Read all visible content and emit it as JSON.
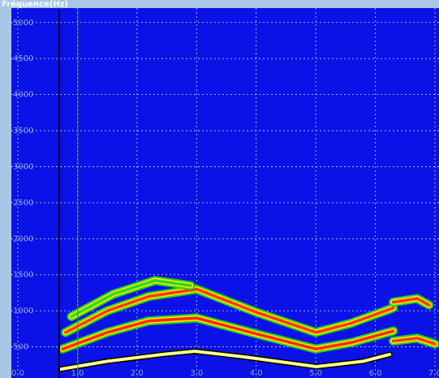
{
  "chart_data": {
    "type": "spectrogram",
    "title": "Fréquence(Hz)",
    "xlim": [
      0,
      7
    ],
    "ylim": [
      0,
      5200
    ],
    "xticks": [
      {
        "value": 0,
        "label": "0.0"
      },
      {
        "value": 1,
        "label": "1.0"
      },
      {
        "value": 2,
        "label": "2.0"
      },
      {
        "value": 3,
        "label": "3.0"
      },
      {
        "value": 4,
        "label": "4.0"
      },
      {
        "value": 5,
        "label": "5.0"
      },
      {
        "value": 6,
        "label": "6.0"
      },
      {
        "value": 7,
        "label": "7.0"
      }
    ],
    "yticks": [
      500,
      1000,
      1500,
      2000,
      2500,
      3000,
      3500,
      4000,
      4500,
      5000
    ],
    "grid": true,
    "series": [
      {
        "color": "#ff2a00",
        "x": [
          0.75,
          1.5,
          2.2,
          3.0,
          4.0,
          5.0,
          5.6,
          6.3
        ],
        "values": [
          470,
          700,
          860,
          900,
          680,
          470,
          560,
          720
        ]
      },
      {
        "color": "#ff3a00",
        "x": [
          0.8,
          1.5,
          2.2,
          3.0,
          4.0,
          5.0,
          5.6,
          6.3
        ],
        "values": [
          700,
          1000,
          1200,
          1300,
          980,
          700,
          830,
          1040
        ]
      },
      {
        "color": "#20e020",
        "x": [
          0.9,
          1.6,
          2.3,
          2.9
        ],
        "values": [
          920,
          1230,
          1420,
          1350
        ]
      },
      {
        "color": "#ff3a00",
        "x": [
          6.3,
          6.7,
          7.0
        ],
        "values": [
          580,
          620,
          540
        ]
      },
      {
        "color": "#ff3a00",
        "x": [
          6.3,
          6.7,
          6.9
        ],
        "values": [
          1120,
          1170,
          1080
        ]
      },
      {
        "color": "#ffffff",
        "x": [
          0.72,
          1.5,
          2.42,
          2.97,
          3.8,
          5.01,
          5.8,
          6.24
        ],
        "values": [
          190,
          300,
          394,
          439,
          360,
          225,
          300,
          394
        ]
      }
    ]
  }
}
